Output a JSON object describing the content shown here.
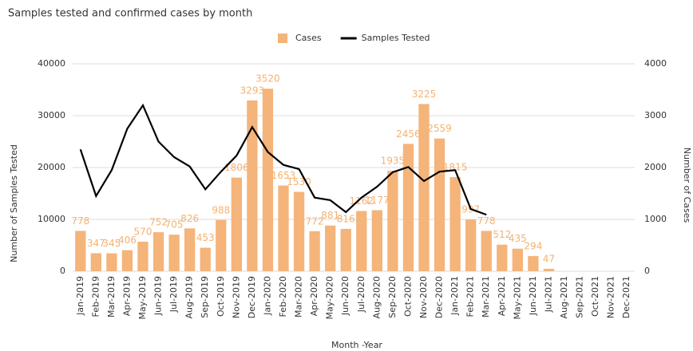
{
  "chart_data": {
    "type": "bar_line",
    "title": "Samples tested and confirmed cases by month",
    "x_label": "Month -Year",
    "y_label": "Number of Samples Tested",
    "y2_label": "Number of Cases",
    "categories": [
      "Jan-2019",
      "Feb-2019",
      "Mar-2019",
      "Apr-2019",
      "May-2019",
      "Jun-2019",
      "Jul-2019",
      "Aug-2019",
      "Sep-2019",
      "Oct-2019",
      "Nov-2019",
      "Dec-2019",
      "Jan-2020",
      "Feb-2020",
      "Mar-2020",
      "Apr-2020",
      "May-2020",
      "Jun-2020",
      "Jul-2020",
      "Aug-2020",
      "Sep-2020",
      "Oct-2020",
      "Nov-2020",
      "Dec-2020",
      "Jan-2021",
      "Feb-2021",
      "Mar-2021",
      "Apr-2021",
      "May-2021",
      "Jun-2021",
      "Jul-2021",
      "Aug-2021",
      "Sep-2021",
      "Oct-2021",
      "Nov-2021",
      "Dec-2021"
    ],
    "series": [
      {
        "name": "Cases",
        "type": "bar",
        "axis": "y2",
        "color": "#f4b47a",
        "values": [
          778,
          347,
          345,
          406,
          570,
          752,
          705,
          826,
          453,
          988,
          1806,
          3293,
          3520,
          1653,
          1530,
          772,
          881,
          816,
          1162,
          1177,
          1935,
          2456,
          3225,
          2559,
          1815,
          997,
          778,
          512,
          435,
          294,
          47,
          null,
          null,
          null,
          null,
          null
        ]
      },
      {
        "name": "Samples Tested",
        "type": "line",
        "axis": "y",
        "color": "#000000",
        "values": [
          23500,
          14500,
          19500,
          27500,
          32000,
          25000,
          22000,
          20200,
          15800,
          19200,
          22300,
          27800,
          23000,
          20500,
          19700,
          14200,
          13700,
          11400,
          14200,
          16300,
          19100,
          20100,
          17400,
          19200,
          19500,
          12000,
          10900,
          null,
          null,
          null,
          null,
          null,
          null,
          null,
          null,
          null
        ]
      }
    ],
    "ylim": [
      0,
      40000
    ],
    "yticks": [
      0,
      10000,
      20000,
      30000,
      40000
    ],
    "y2lim": [
      0,
      4000
    ],
    "y2ticks": [
      0,
      1000,
      2000,
      3000,
      4000
    ],
    "grid": true,
    "legend": "top"
  }
}
